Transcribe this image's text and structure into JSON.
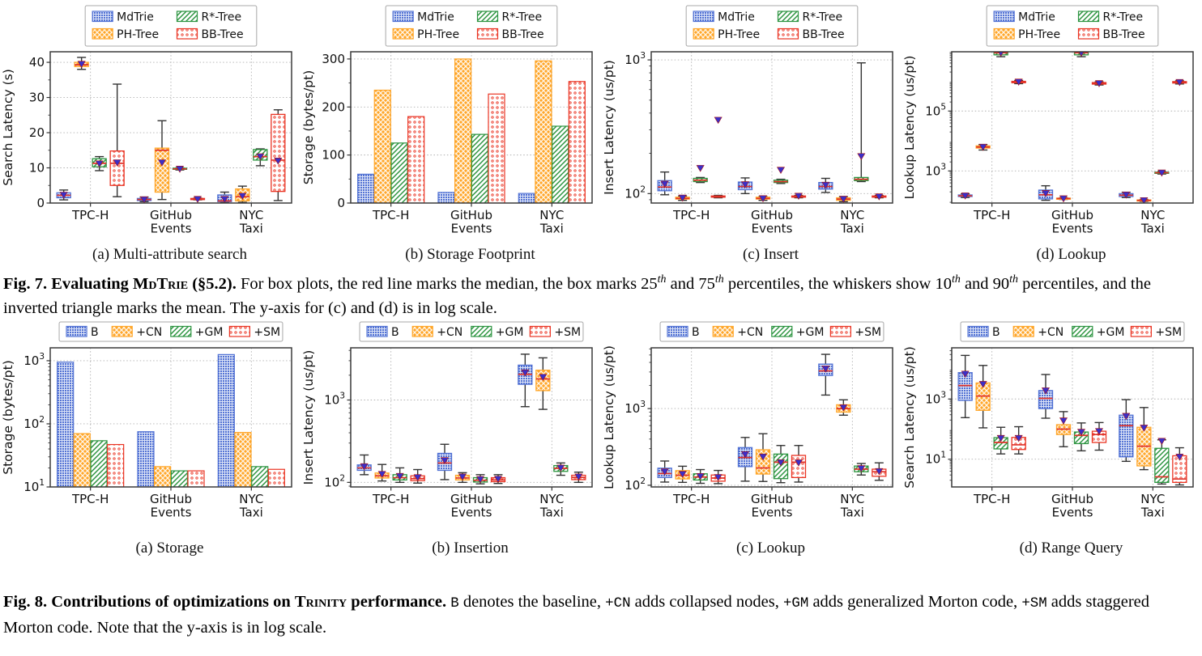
{
  "palette": [
    {
      "key": "series-1",
      "color": "#5272d4",
      "hatch": "grid"
    },
    {
      "key": "series-2",
      "color": "#ffa629",
      "hatch": "cross"
    },
    {
      "key": "series-3",
      "color": "#2c9440",
      "hatch": "diag"
    },
    {
      "key": "series-4",
      "color": "#ea3423",
      "hatch": "dots"
    }
  ],
  "box_style": {
    "median_color": "#e03128",
    "mean_fill": "#3b2fc8",
    "mean_edge": "#aa1111",
    "whisker_color": "#333333",
    "frame_color": "#3a3a3a",
    "grid_color": "#b0b0b0"
  },
  "chart_data": [
    {
      "id": "fig7-a",
      "figure": 7,
      "type": "box",
      "caption": "(a) Multi-attribute search",
      "ylabel": "Search Latency (s)",
      "yscale": "linear",
      "ylim": [
        0,
        43
      ],
      "yticks": [
        0,
        10,
        20,
        30,
        40
      ],
      "yminor": [
        5,
        15,
        25,
        35
      ],
      "grid_x": true,
      "legend": [
        "MdTrie",
        "PH-Tree",
        "R*-Tree",
        "BB-Tree"
      ],
      "legend_layout": "grid",
      "categories": [
        [
          "TPC-H"
        ],
        [
          "GitHub",
          "Events"
        ],
        [
          "NYC",
          "Taxi"
        ]
      ],
      "boxes": [
        [
          [
            0.9,
            1.5,
            2.2,
            2.9,
            3.7,
            2.3
          ],
          [
            38.0,
            38.8,
            39.3,
            40.0,
            41.4,
            39.5
          ],
          [
            9.2,
            10.3,
            11.3,
            12.6,
            13.2,
            11.2
          ],
          [
            1.8,
            5.0,
            11.3,
            14.8,
            33.8,
            11.5
          ]
        ],
        [
          [
            0.4,
            0.7,
            1.0,
            1.3,
            1.7,
            1.0
          ],
          [
            1.0,
            3.1,
            15.0,
            15.6,
            23.4,
            11.5
          ],
          [
            9.4,
            9.6,
            9.7,
            9.9,
            10.0,
            9.7
          ],
          [
            0.9,
            1.0,
            1.1,
            1.3,
            1.4,
            1.1
          ]
        ],
        [
          [
            0.2,
            0.4,
            0.6,
            2.3,
            3.1,
            1.1
          ],
          [
            0.2,
            0.6,
            1.8,
            4.0,
            4.8,
            2.0
          ],
          [
            10.6,
            12.2,
            13.2,
            15.2,
            15.4,
            13.2
          ],
          [
            0.7,
            3.3,
            12.2,
            25.2,
            26.5,
            12.0
          ]
        ]
      ]
    },
    {
      "id": "fig7-b",
      "figure": 7,
      "type": "bar",
      "caption": "(b) Storage Footprint",
      "ylabel": "Storage (bytes/pt)",
      "yscale": "linear",
      "ylim": [
        0,
        315
      ],
      "yticks": [
        0,
        100,
        200,
        300
      ],
      "yminor": [
        50,
        150,
        250
      ],
      "grid_x": true,
      "legend": [
        "MdTrie",
        "PH-Tree",
        "R*-Tree",
        "BB-Tree"
      ],
      "legend_layout": "grid",
      "categories": [
        [
          "TPC-H"
        ],
        [
          "GitHub",
          "Events"
        ],
        [
          "NYC",
          "Taxi"
        ]
      ],
      "values": [
        [
          60,
          235,
          125,
          180
        ],
        [
          22,
          300,
          143,
          227
        ],
        [
          20,
          296,
          160,
          253
        ]
      ]
    },
    {
      "id": "fig7-c",
      "figure": 7,
      "type": "box",
      "caption": "(c) Insert",
      "ylabel": "Insert Latency (us/pt)",
      "yscale": "log",
      "ylim": [
        85,
        1150
      ],
      "yticks": [
        100,
        1000
      ],
      "grid_x": true,
      "legend": [
        "MdTrie",
        "PH-Tree",
        "R*-Tree",
        "BB-Tree"
      ],
      "legend_layout": "grid",
      "categories": [
        [
          "TPC-H"
        ],
        [
          "GitHub",
          "Events"
        ],
        [
          "NYC",
          "Taxi"
        ]
      ],
      "boxes": [
        [
          [
            98,
            105,
            112,
            125,
            145,
            118
          ],
          [
            89,
            91,
            92,
            94,
            96,
            93
          ],
          [
            121,
            123,
            126,
            130,
            132,
            155
          ],
          [
            93,
            94,
            95,
            96,
            97,
            355
          ]
        ],
        [
          [
            100,
            107,
            113,
            122,
            131,
            117
          ],
          [
            89,
            91,
            92,
            94,
            95,
            92
          ],
          [
            119,
            121,
            123,
            126,
            128,
            150
          ],
          [
            93,
            94,
            95,
            96,
            97,
            96
          ]
        ],
        [
          [
            102,
            108,
            113,
            121,
            130,
            116
          ],
          [
            87,
            89,
            91,
            93,
            95,
            91
          ],
          [
            123,
            125,
            128,
            132,
            950,
            190
          ],
          [
            93,
            94,
            95,
            96,
            97,
            95
          ]
        ]
      ]
    },
    {
      "id": "fig7-d",
      "figure": 7,
      "type": "box",
      "caption": "(d) Lookup",
      "ylabel": "Lookup Latency (us/pt)",
      "yscale": "log",
      "ylim": [
        85,
        9500000
      ],
      "yticks": [
        1000,
        100000
      ],
      "grid_x": true,
      "legend": [
        "MdTrie",
        "PH-Tree",
        "R*-Tree",
        "BB-Tree"
      ],
      "legend_layout": "grid",
      "categories": [
        [
          "TPC-H"
        ],
        [
          "GitHub",
          "Events"
        ],
        [
          "NYC",
          "Taxi"
        ]
      ],
      "boxes": [
        [
          [
            130,
            140,
            148,
            158,
            172,
            149
          ],
          [
            5000,
            5800,
            6300,
            6900,
            7600,
            6300
          ],
          [
            6500000,
            7500000,
            8800000,
            11000000,
            12500000,
            8800000
          ],
          [
            820000,
            880000,
            930000,
            980000,
            1050000,
            940000
          ]
        ],
        [
          [
            105,
            117,
            160,
            230,
            320,
            180
          ],
          [
            112,
            116,
            120,
            124,
            128,
            120
          ],
          [
            6500000,
            7500000,
            8800000,
            11000000,
            12500000,
            8800000
          ],
          [
            740000,
            790000,
            840000,
            890000,
            940000,
            840000
          ]
        ],
        [
          [
            130,
            140,
            155,
            175,
            195,
            160
          ],
          [
            96,
            100,
            104,
            108,
            112,
            104
          ],
          [
            790,
            830,
            870,
            910,
            950,
            870
          ],
          [
            800000,
            860000,
            910000,
            960000,
            1020000,
            910000
          ]
        ]
      ]
    },
    {
      "id": "fig8-a",
      "figure": 8,
      "type": "bar",
      "caption": "(a) Storage",
      "ylabel": "Storage (bytes/pt)",
      "yscale": "log",
      "ylim": [
        10,
        1600
      ],
      "yticks": [
        10,
        100,
        1000
      ],
      "grid_x": true,
      "legend": [
        "B",
        "+CN",
        "+GM",
        "+SM"
      ],
      "legend_layout": "row",
      "categories": [
        [
          "TPC-H"
        ],
        [
          "GitHub",
          "Events"
        ],
        [
          "NYC",
          "Taxi"
        ]
      ],
      "values": [
        [
          950,
          70,
          54,
          47
        ],
        [
          75,
          21,
          18,
          18
        ],
        [
          1250,
          73,
          21,
          19
        ]
      ]
    },
    {
      "id": "fig8-b",
      "figure": 8,
      "type": "box",
      "caption": "(b) Insertion",
      "ylabel": "Insert Latency (us/pt)",
      "yscale": "log",
      "ylim": [
        88,
        4300
      ],
      "yticks": [
        100,
        1000
      ],
      "grid_x": true,
      "legend": [
        "B",
        "+CN",
        "+GM",
        "+SM"
      ],
      "legend_layout": "row",
      "categories": [
        [
          "TPC-H"
        ],
        [
          "GitHub",
          "Events"
        ],
        [
          "NYC",
          "Taxi"
        ]
      ],
      "boxes": [
        [
          [
            124,
            140,
            150,
            163,
            215,
            156
          ],
          [
            104,
            113,
            120,
            130,
            165,
            126
          ],
          [
            100,
            107,
            114,
            124,
            150,
            119
          ],
          [
            98,
            105,
            111,
            120,
            143,
            115
          ]
        ],
        [
          [
            108,
            140,
            172,
            225,
            290,
            185
          ],
          [
            100,
            107,
            113,
            122,
            131,
            117
          ],
          [
            96,
            101,
            106,
            114,
            124,
            109
          ],
          [
            97,
            102,
            107,
            114,
            124,
            110
          ]
        ],
        [
          [
            830,
            1550,
            2050,
            2650,
            3600,
            2150
          ],
          [
            770,
            1300,
            1800,
            2300,
            3250,
            1900
          ],
          [
            122,
            136,
            148,
            160,
            172,
            150
          ],
          [
            100,
            108,
            115,
            122,
            133,
            117
          ]
        ]
      ]
    },
    {
      "id": "fig8-c",
      "figure": 8,
      "type": "box",
      "caption": "(c) Lookup",
      "ylabel": "Lookup Latency (us/pt)",
      "yscale": "log",
      "ylim": [
        95,
        6200
      ],
      "yticks": [
        100,
        1000
      ],
      "grid_x": true,
      "legend": [
        "B",
        "+CN",
        "+GM",
        "+SM"
      ],
      "legend_layout": "row",
      "categories": [
        [
          "TPC-H"
        ],
        [
          "GitHub",
          "Events"
        ],
        [
          "NYC",
          "Taxi"
        ]
      ],
      "boxes": [
        [
          [
            110,
            126,
            142,
            167,
            207,
            150
          ],
          [
            109,
            121,
            135,
            155,
            177,
            140
          ],
          [
            106,
            117,
            128,
            141,
            160,
            131
          ],
          [
            105,
            113,
            124,
            136,
            156,
            127
          ]
        ],
        [
          [
            113,
            175,
            230,
            310,
            420,
            252
          ],
          [
            112,
            140,
            168,
            290,
            470,
            235
          ],
          [
            108,
            122,
            200,
            255,
            330,
            198
          ],
          [
            110,
            126,
            200,
            245,
            330,
            197
          ]
        ],
        [
          [
            1500,
            2700,
            3100,
            3800,
            5100,
            3300
          ],
          [
            820,
            900,
            1000,
            1120,
            1300,
            1030
          ],
          [
            136,
            150,
            162,
            178,
            192,
            166
          ],
          [
            116,
            131,
            150,
            162,
            196,
            152
          ]
        ]
      ]
    },
    {
      "id": "fig8-d",
      "figure": 8,
      "type": "box",
      "caption": "(d) Range Query",
      "ylabel": "Search Latency (us/pt)",
      "yscale": "log",
      "ylim": [
        1.2,
        50000
      ],
      "yticks": [
        10,
        1000
      ],
      "grid_x": true,
      "legend": [
        "B",
        "+CN",
        "+GM",
        "+SM"
      ],
      "legend_layout": "row",
      "categories": [
        [
          "TPC-H"
        ],
        [
          "GitHub",
          "Events"
        ],
        [
          "NYC",
          "Taxi"
        ]
      ],
      "boxes": [
        [
          [
            240,
            900,
            2800,
            7500,
            28000,
            6800
          ],
          [
            110,
            420,
            1250,
            3400,
            13000,
            3100
          ],
          [
            15,
            22,
            36,
            52,
            115,
            50
          ],
          [
            15,
            21,
            30,
            53,
            120,
            50
          ]
        ],
        [
          [
            230,
            480,
            1050,
            1900,
            6500,
            1900
          ],
          [
            26,
            66,
            100,
            140,
            380,
            190
          ],
          [
            19,
            33,
            62,
            80,
            160,
            80
          ],
          [
            20,
            36,
            66,
            85,
            165,
            85
          ]
        ],
        [
          [
            8.5,
            12,
            130,
            290,
            950,
            270
          ],
          [
            4.5,
            6,
            27,
            115,
            520,
            110
          ],
          [
            1.5,
            1.7,
            2.6,
            23,
            44,
            40
          ],
          [
            1.4,
            1.7,
            2.2,
            13,
            24,
            12
          ]
        ]
      ]
    }
  ],
  "fig7_caption": [
    {
      "s": "b",
      "t": "Fig. 7. Evaluating "
    },
    {
      "s": "bsc",
      "t": "MdTrie"
    },
    {
      "s": "b",
      "t": " (§5.2)."
    },
    {
      "s": "n",
      "t": " For box plots, the red line marks the median, the box marks 25"
    },
    {
      "s": "sup",
      "t": "th"
    },
    {
      "s": "n",
      "t": " and 75"
    },
    {
      "s": "sup",
      "t": "th"
    },
    {
      "s": "n",
      "t": " percentiles, the whiskers show 10"
    },
    {
      "s": "sup",
      "t": "th"
    },
    {
      "s": "n",
      "t": " and 90"
    },
    {
      "s": "sup",
      "t": "th"
    },
    {
      "s": "n",
      "t": " percentiles, and the inverted triangle marks the mean. The y-axis for (c) and (d) is in log scale."
    }
  ],
  "fig8_caption": [
    {
      "s": "b",
      "t": "Fig. 8. Contributions of optimizations on "
    },
    {
      "s": "bsc",
      "t": "Trinity"
    },
    {
      "s": "b",
      "t": " performance. "
    },
    {
      "s": "m",
      "t": "B"
    },
    {
      "s": "n",
      "t": " denotes the baseline, "
    },
    {
      "s": "m",
      "t": "+CN"
    },
    {
      "s": "n",
      "t": " adds collapsed nodes, "
    },
    {
      "s": "m",
      "t": "+GM"
    },
    {
      "s": "n",
      "t": " adds generalized Morton code, "
    },
    {
      "s": "m",
      "t": "+SM"
    },
    {
      "s": "n",
      "t": " adds staggered Morton code. Note that the y-axis is in log scale."
    }
  ]
}
